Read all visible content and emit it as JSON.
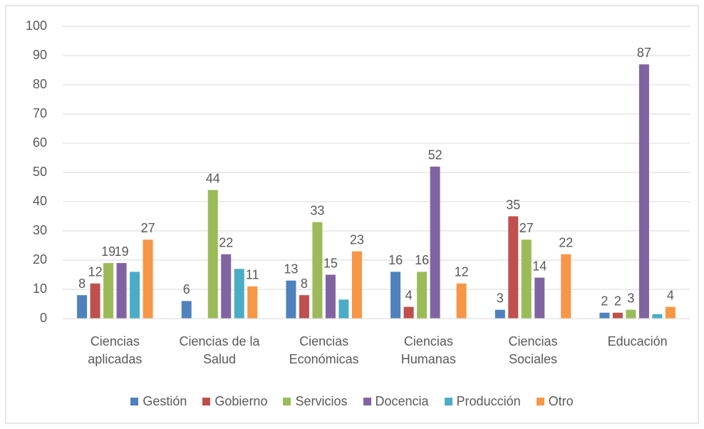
{
  "chart_data": {
    "type": "bar",
    "categories": [
      "Ciencias aplicadas",
      "Ciencias de la Salud",
      "Ciencias Económicas",
      "Ciencias Humanas",
      "Ciencias Sociales",
      "Educación"
    ],
    "series": [
      {
        "name": "Gestión",
        "color": "#4f81bd",
        "values": [
          8,
          6,
          13,
          16,
          3,
          2
        ]
      },
      {
        "name": "Gobierno",
        "color": "#c0504d",
        "values": [
          12,
          null,
          8,
          4,
          35,
          2
        ]
      },
      {
        "name": "Servicios",
        "color": "#9bbb59",
        "values": [
          19,
          44,
          33,
          16,
          27,
          3
        ]
      },
      {
        "name": "Docencia",
        "color": "#8064a2",
        "values": [
          19,
          22,
          15,
          52,
          14,
          87
        ]
      },
      {
        "name": "Producción",
        "color": "#4bacc6",
        "values": [
          16,
          17,
          6.5,
          null,
          null,
          1.5
        ],
        "value_labels": [
          null,
          null,
          null,
          null,
          null,
          null
        ]
      },
      {
        "name": "Otro",
        "color": "#f79646",
        "values": [
          27,
          11,
          23,
          12,
          22,
          4
        ]
      }
    ],
    "ylim": [
      0,
      100
    ],
    "yticks": [
      0,
      10,
      20,
      30,
      40,
      50,
      60,
      70,
      80,
      90,
      100
    ],
    "grid": true,
    "legend": "bottom"
  }
}
